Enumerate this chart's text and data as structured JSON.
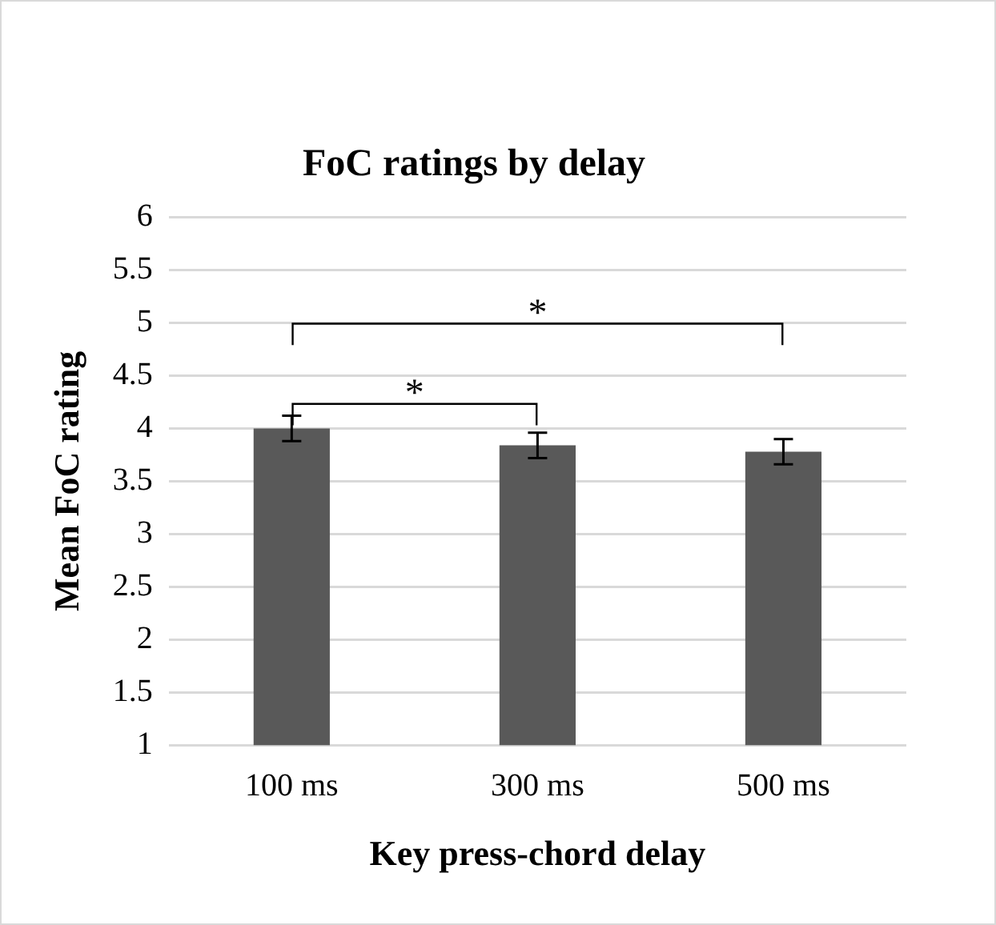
{
  "chart_data": {
    "type": "bar",
    "title": "FoC ratings by delay",
    "xlabel": "Key press-chord delay",
    "ylabel": "Mean FoC rating",
    "categories": [
      "100 ms",
      "300 ms",
      "500 ms"
    ],
    "values": [
      4.0,
      3.84,
      3.78
    ],
    "errors": [
      0.12,
      0.12,
      0.12
    ],
    "color": "#595959",
    "ylim": [
      1,
      6
    ],
    "yticks": [
      1,
      1.5,
      2,
      2.5,
      3,
      3.5,
      4,
      4.5,
      5,
      5.5,
      6
    ],
    "grid": "y",
    "legend": false,
    "annotations": [
      "*",
      "*"
    ]
  }
}
